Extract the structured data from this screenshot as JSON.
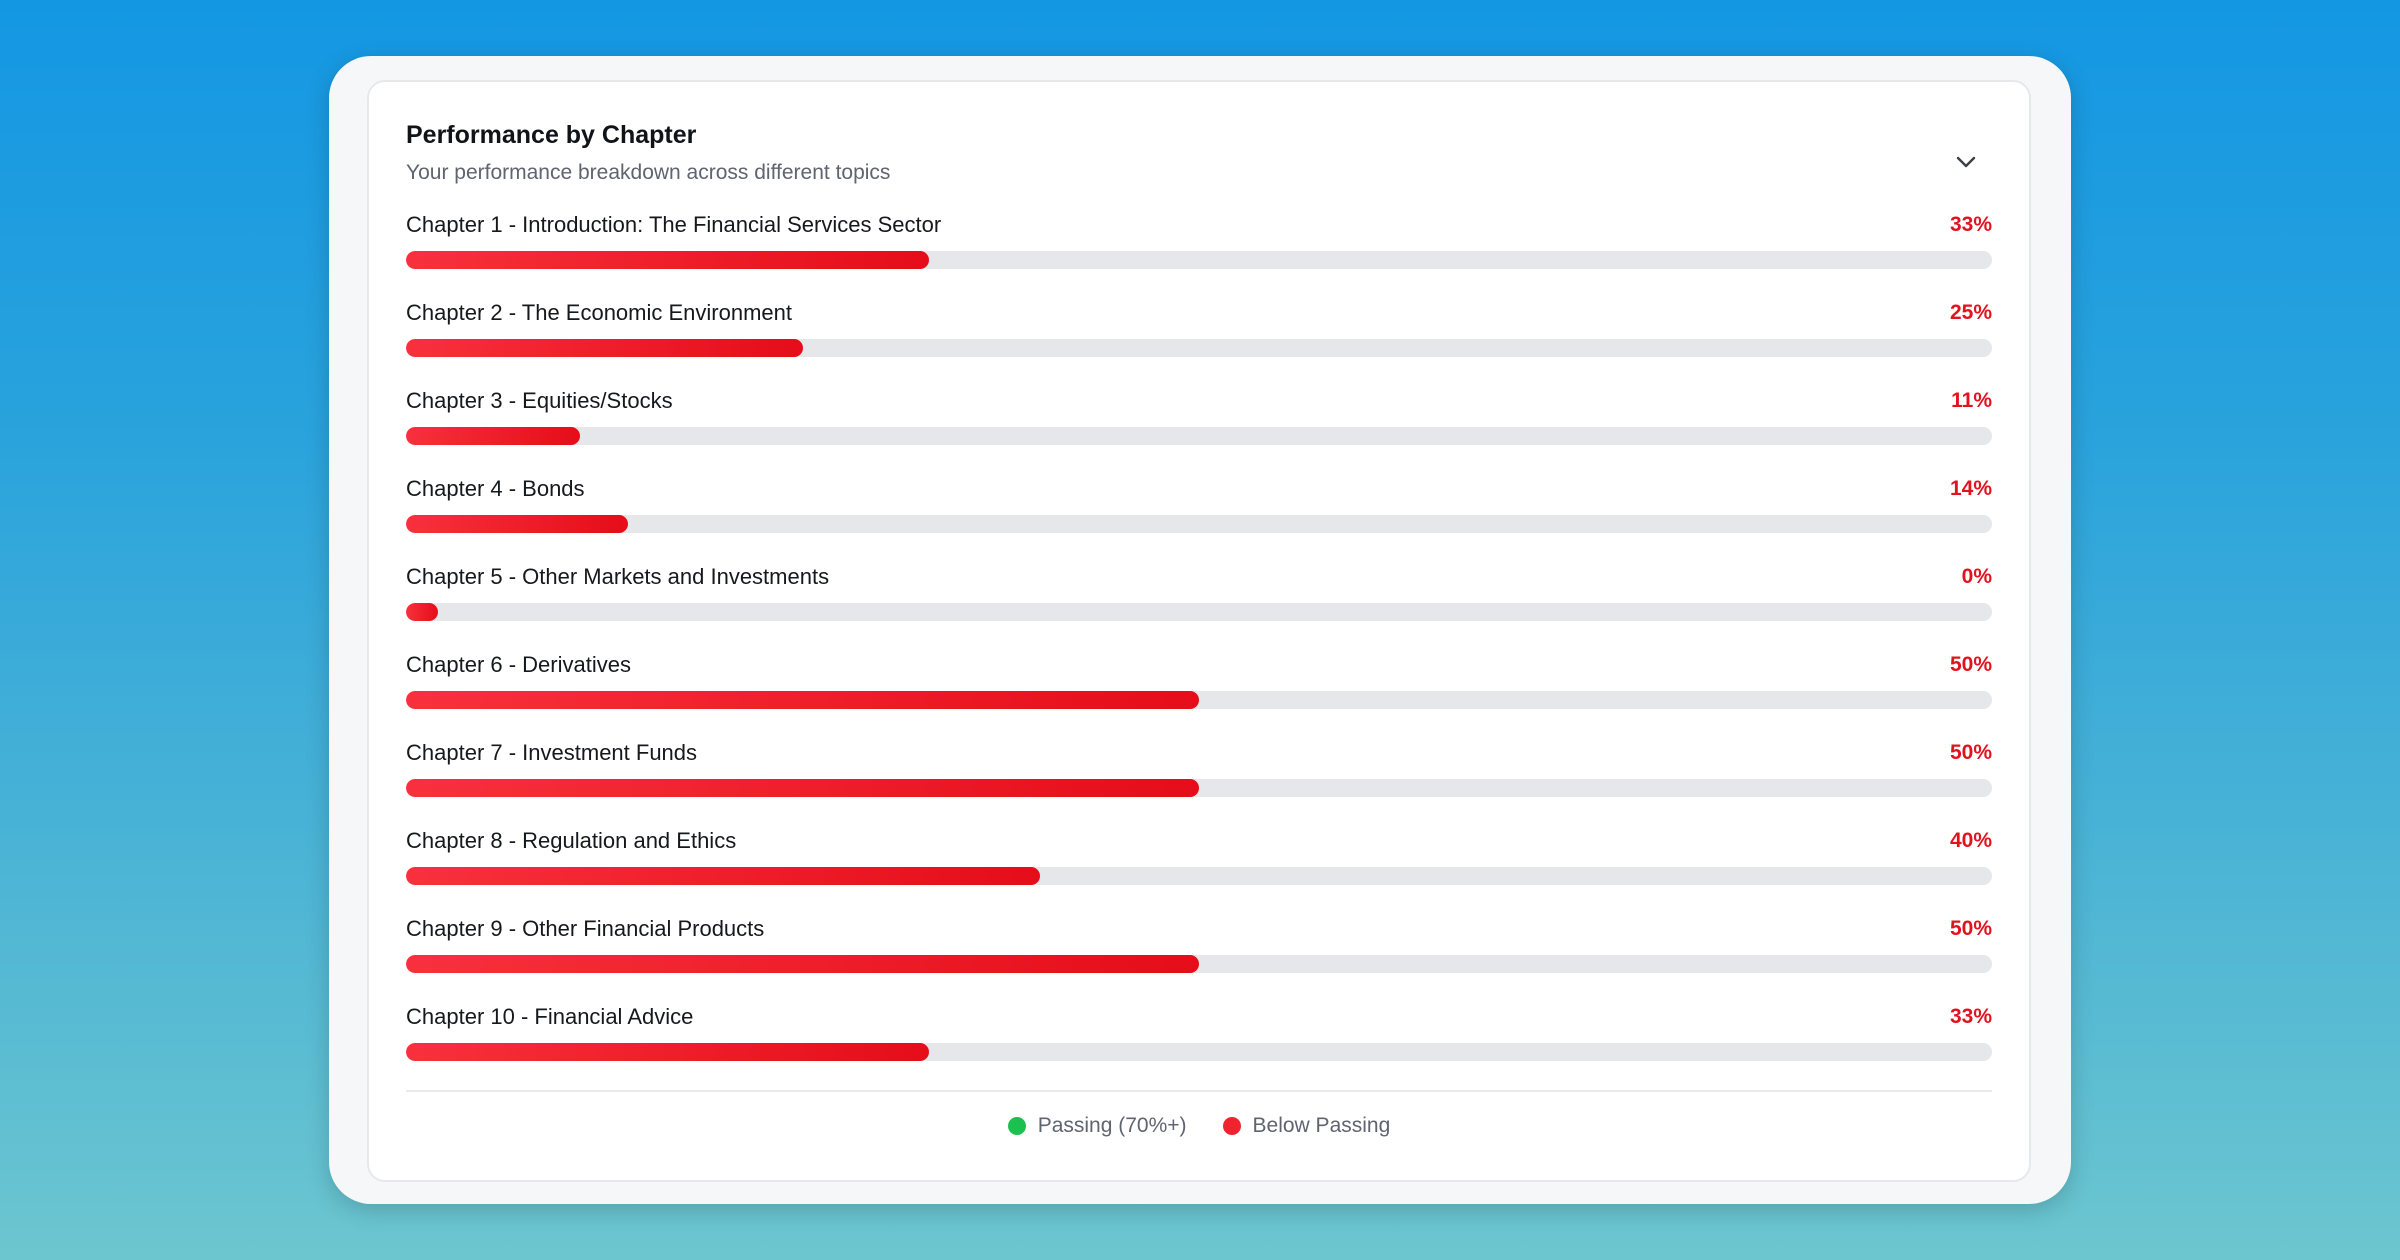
{
  "card": {
    "title": "Performance by Chapter",
    "subtitle": "Your performance breakdown across different topics"
  },
  "chapters": [
    {
      "name": "Chapter 1 - Introduction: The Financial Services Sector",
      "percent_label": "33%",
      "value": 33
    },
    {
      "name": "Chapter 2 - The Economic Environment",
      "percent_label": "25%",
      "value": 25
    },
    {
      "name": "Chapter 3 - Equities/Stocks",
      "percent_label": "11%",
      "value": 11
    },
    {
      "name": "Chapter 4 - Bonds",
      "percent_label": "14%",
      "value": 14
    },
    {
      "name": "Chapter 5 - Other Markets and Investments",
      "percent_label": "0%",
      "value": 0
    },
    {
      "name": "Chapter 6 - Derivatives",
      "percent_label": "50%",
      "value": 50
    },
    {
      "name": "Chapter 7 - Investment Funds",
      "percent_label": "50%",
      "value": 50
    },
    {
      "name": "Chapter 8 - Regulation and Ethics",
      "percent_label": "40%",
      "value": 40
    },
    {
      "name": "Chapter 9 - Other Financial Products",
      "percent_label": "50%",
      "value": 50
    },
    {
      "name": "Chapter 10 - Financial Advice",
      "percent_label": "33%",
      "value": 33
    }
  ],
  "legend": {
    "passing_label": "Passing (70%+)",
    "below_label": "Below Passing"
  },
  "colors": {
    "passing": "#1cc04f",
    "below": "#f0232f",
    "track": "#e6e7ea"
  },
  "icons": {
    "collapse": "chevron-down-icon"
  }
}
